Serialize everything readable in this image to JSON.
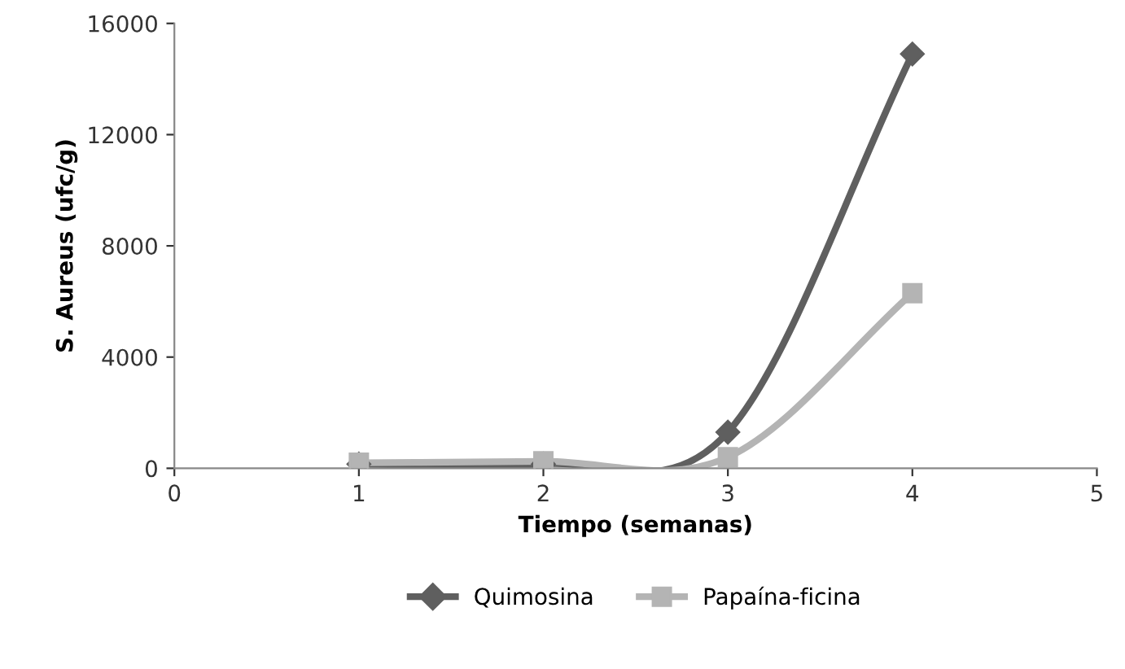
{
  "chart_data": {
    "type": "line",
    "xlabel": "Tiempo (semanas)",
    "ylabel": "S. Aureus (ufc/g)",
    "x": [
      1,
      2,
      3,
      4
    ],
    "series": [
      {
        "name": "Quimosina",
        "color": "#5f5f5f",
        "marker": "diamond",
        "values": [
          150,
          150,
          1300,
          14900
        ]
      },
      {
        "name": "Papaína-ficina",
        "color": "#b4b4b4",
        "marker": "square",
        "values": [
          200,
          250,
          400,
          6300
        ]
      }
    ],
    "xlim": [
      0,
      5
    ],
    "xticks": [
      0,
      1,
      2,
      3,
      4,
      5
    ],
    "ylim": [
      0,
      16000
    ],
    "yticks": [
      0,
      4000,
      8000,
      12000,
      16000
    ],
    "grid": false,
    "legend": "bottom",
    "line_style": "solid"
  }
}
